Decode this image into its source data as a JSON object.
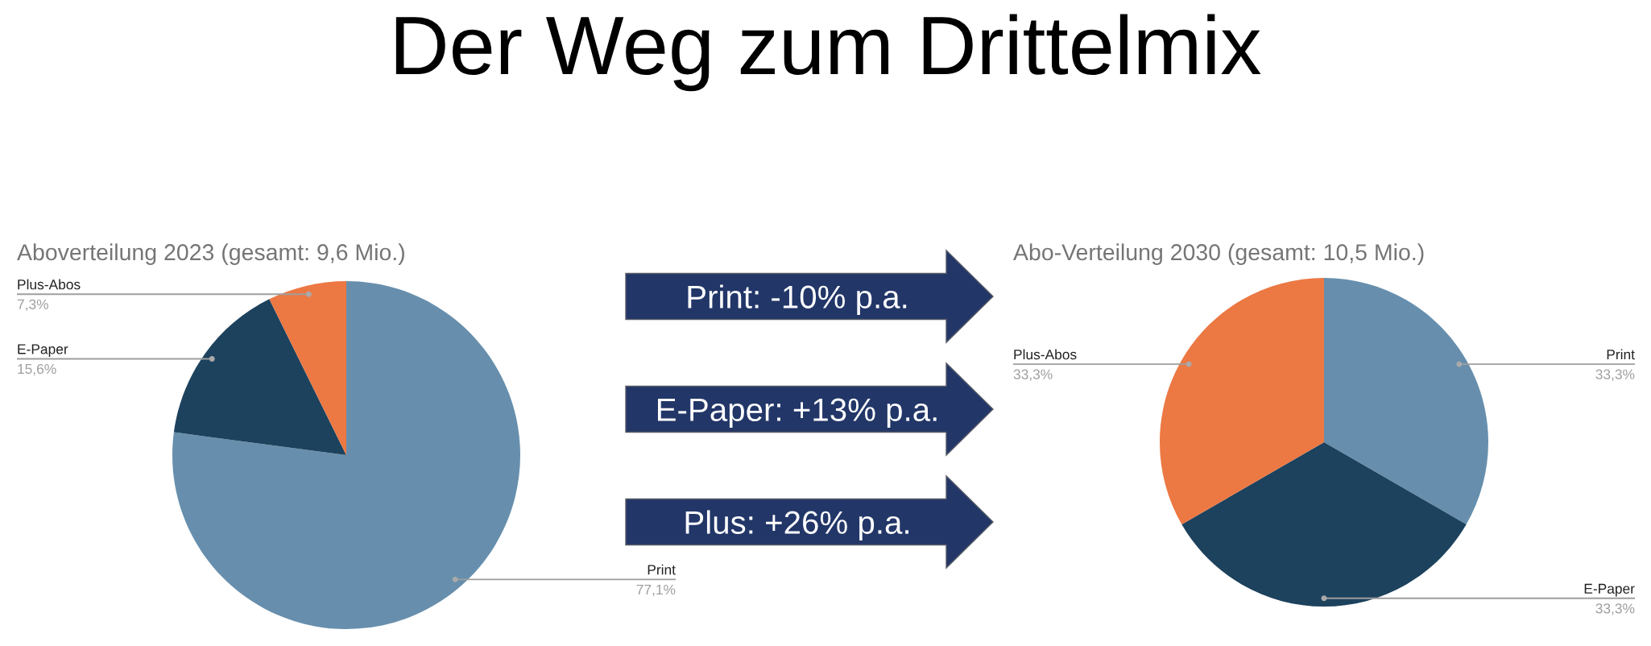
{
  "chart_data": [
    {
      "type": "pie",
      "title": "Aboverteilung 2023 (gesamt: 9,6 Mio.)",
      "categories": [
        "Print",
        "E-Paper",
        "Plus-Abos"
      ],
      "values": [
        77.1,
        15.6,
        7.3
      ],
      "colors": [
        "#678fad",
        "#1d425d",
        "#ec7843"
      ],
      "value_labels": [
        "77,1%",
        "15,6%",
        "7,3%"
      ]
    },
    {
      "type": "other",
      "title": "Der Weg zum Drittelmix",
      "annotations": [
        "Print: -10% p.a.",
        "E-Paper: +13% p.a.",
        "Plus: +26% p.a."
      ]
    },
    {
      "type": "pie",
      "title": "Abo-Verteilung 2030 (gesamt: 10,5 Mio.)",
      "categories": [
        "Print",
        "E-Paper",
        "Plus-Abos"
      ],
      "values": [
        33.3,
        33.3,
        33.3
      ],
      "colors": [
        "#678fad",
        "#1d425d",
        "#ec7843"
      ],
      "value_labels": [
        "33,3%",
        "33,3%",
        "33,3%"
      ]
    }
  ]
}
